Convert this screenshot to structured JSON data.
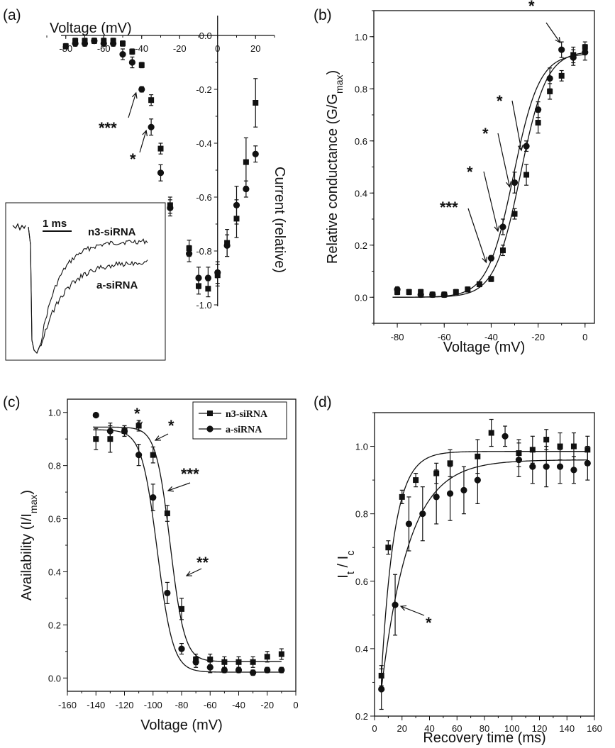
{
  "chart_data": [
    {
      "panel": "(a)",
      "type": "scatter",
      "xlabel": "Voltage (mV)",
      "ylabel": "Current (relative)",
      "xlim": [
        -90,
        30
      ],
      "ylim": [
        -1.0,
        0.1
      ],
      "xticks": [
        -80,
        -60,
        -40,
        -20,
        0,
        20
      ],
      "xtick_labels": [
        "-80",
        "-60",
        "-40",
        "-20",
        "0",
        "20"
      ],
      "yticks": [
        0.0,
        -0.2,
        -0.4,
        -0.6,
        -0.8,
        -1.0
      ],
      "ytick_labels": [
        "0.0",
        "-0.2",
        "-0.4",
        "-0.6",
        "-0.8",
        "-1.0"
      ],
      "series": [
        {
          "name": "n3-siRNA",
          "marker": "square",
          "points": [
            {
              "x": -80,
              "y": -0.04,
              "err": 0.01
            },
            {
              "x": -75,
              "y": -0.02,
              "err": 0.01
            },
            {
              "x": -70,
              "y": -0.02,
              "err": 0.01
            },
            {
              "x": -65,
              "y": -0.02,
              "err": 0.01
            },
            {
              "x": -60,
              "y": -0.02,
              "err": 0.01
            },
            {
              "x": -55,
              "y": -0.02,
              "err": 0.01
            },
            {
              "x": -50,
              "y": -0.03,
              "err": 0.01
            },
            {
              "x": -45,
              "y": -0.06,
              "err": 0.01
            },
            {
              "x": -40,
              "y": -0.11,
              "err": 0.01
            },
            {
              "x": -35,
              "y": -0.24,
              "err": 0.02
            },
            {
              "x": -30,
              "y": -0.42,
              "err": 0.02
            },
            {
              "x": -25,
              "y": -0.63,
              "err": 0.03
            },
            {
              "x": -15,
              "y": -0.79,
              "err": 0.03
            },
            {
              "x": -10,
              "y": -0.93,
              "err": 0.03
            },
            {
              "x": -5,
              "y": -0.94,
              "err": 0.03
            },
            {
              "x": 0,
              "y": -0.89,
              "err": 0.04
            },
            {
              "x": 5,
              "y": -0.77,
              "err": 0.05
            },
            {
              "x": 10,
              "y": -0.68,
              "err": 0.07
            },
            {
              "x": 15,
              "y": -0.47,
              "err": 0.09
            },
            {
              "x": 20,
              "y": -0.25,
              "err": 0.09
            }
          ]
        },
        {
          "name": "a-siRNA",
          "marker": "circle",
          "points": [
            {
              "x": -75,
              "y": -0.03,
              "err": 0.01
            },
            {
              "x": -70,
              "y": -0.03,
              "err": 0.01
            },
            {
              "x": -65,
              "y": -0.02,
              "err": 0.01
            },
            {
              "x": -60,
              "y": -0.03,
              "err": 0.01
            },
            {
              "x": -55,
              "y": -0.03,
              "err": 0.01
            },
            {
              "x": -50,
              "y": -0.07,
              "err": 0.02
            },
            {
              "x": -45,
              "y": -0.1,
              "err": 0.02
            },
            {
              "x": -40,
              "y": -0.2,
              "err": 0.01
            },
            {
              "x": -35,
              "y": -0.34,
              "err": 0.03
            },
            {
              "x": -30,
              "y": -0.51,
              "err": 0.03
            },
            {
              "x": -25,
              "y": -0.64,
              "err": 0.03
            },
            {
              "x": -15,
              "y": -0.81,
              "err": 0.03
            },
            {
              "x": -10,
              "y": -0.9,
              "err": 0.04
            },
            {
              "x": -5,
              "y": -0.9,
              "err": 0.04
            },
            {
              "x": 0,
              "y": -0.88,
              "err": 0.04
            },
            {
              "x": 5,
              "y": -0.78,
              "err": 0.04
            },
            {
              "x": 10,
              "y": -0.63,
              "err": 0.07
            },
            {
              "x": 15,
              "y": -0.57,
              "err": 0.03
            },
            {
              "x": 20,
              "y": -0.44,
              "err": 0.03
            }
          ]
        }
      ],
      "annotations": [
        {
          "text": "***",
          "at_x": -40,
          "at_y": -0.2
        },
        {
          "text": "*",
          "at_x": -35,
          "at_y": -0.34
        }
      ],
      "inset": {
        "scale_label": "1 ms",
        "labels": [
          "n3-siRNA",
          "a-siRNA"
        ]
      }
    },
    {
      "panel": "(b)",
      "type": "scatter",
      "xlabel": "Voltage (mV)",
      "ylabel_main": "Relative conductance (G/G",
      "ylabel_sub": "max",
      "ylabel_end": ")",
      "xlim": [
        -90,
        4
      ],
      "ylim": [
        -0.1,
        1.1
      ],
      "xticks": [
        -80,
        -60,
        -40,
        -20,
        0
      ],
      "xtick_labels": [
        "-80",
        "-60",
        "-40",
        "-20",
        "0"
      ],
      "yticks": [
        0.0,
        0.2,
        0.4,
        0.6,
        0.8,
        1.0
      ],
      "ytick_labels": [
        "0.0",
        "0.2",
        "0.4",
        "0.6",
        "0.8",
        "1.0"
      ],
      "fits": [
        {
          "series": "n3-siRNA",
          "model": "boltzmann",
          "v_half": -27.5,
          "k": 5.5,
          "gmax": 0.945
        },
        {
          "series": "a-siRNA",
          "model": "boltzmann",
          "v_half": -30.5,
          "k": 5.5,
          "gmax": 0.935
        }
      ],
      "series": [
        {
          "name": "n3-siRNA",
          "marker": "square",
          "points": [
            {
              "x": -80,
              "y": 0.02,
              "err": 0.01
            },
            {
              "x": -75,
              "y": 0.02,
              "err": 0.01
            },
            {
              "x": -70,
              "y": 0.02,
              "err": 0.01
            },
            {
              "x": -65,
              "y": 0.01,
              "err": 0.01
            },
            {
              "x": -60,
              "y": 0.01,
              "err": 0.01
            },
            {
              "x": -55,
              "y": 0.02,
              "err": 0.01
            },
            {
              "x": -50,
              "y": 0.03,
              "err": 0.01
            },
            {
              "x": -45,
              "y": 0.05,
              "err": 0.01
            },
            {
              "x": -40,
              "y": 0.07,
              "err": 0.01
            },
            {
              "x": -35,
              "y": 0.18,
              "err": 0.02
            },
            {
              "x": -30,
              "y": 0.32,
              "err": 0.02
            },
            {
              "x": -25,
              "y": 0.47,
              "err": 0.04
            },
            {
              "x": -20,
              "y": 0.67,
              "err": 0.04
            },
            {
              "x": -15,
              "y": 0.79,
              "err": 0.03
            },
            {
              "x": -10,
              "y": 0.85,
              "err": 0.02
            },
            {
              "x": -5,
              "y": 0.93,
              "err": 0.03
            },
            {
              "x": 0,
              "y": 0.96,
              "err": 0.02
            }
          ]
        },
        {
          "name": "a-siRNA",
          "marker": "circle",
          "points": [
            {
              "x": -80,
              "y": 0.03,
              "err": 0.01
            },
            {
              "x": -70,
              "y": 0.01,
              "err": 0.01
            },
            {
              "x": -65,
              "y": 0.01,
              "err": 0.01
            },
            {
              "x": -60,
              "y": 0.01,
              "err": 0.01
            },
            {
              "x": -40,
              "y": 0.15,
              "err": 0.01
            },
            {
              "x": -35,
              "y": 0.27,
              "err": 0.03
            },
            {
              "x": -30,
              "y": 0.44,
              "err": 0.04
            },
            {
              "x": -25,
              "y": 0.58,
              "err": 0.02
            },
            {
              "x": -20,
              "y": 0.72,
              "err": 0.03
            },
            {
              "x": -15,
              "y": 0.84,
              "err": 0.04
            },
            {
              "x": -10,
              "y": 0.95,
              "err": 0.03
            },
            {
              "x": -5,
              "y": 0.92,
              "err": 0.03
            },
            {
              "x": 0,
              "y": 0.94,
              "err": 0.03
            }
          ]
        }
      ],
      "annotations": [
        {
          "text": "***",
          "at_x": -40,
          "at_y": 0.15
        },
        {
          "text": "*",
          "at_x": -35,
          "at_y": 0.27
        },
        {
          "text": "*",
          "at_x": -30,
          "at_y": 0.44
        },
        {
          "text": "*",
          "at_x": -25,
          "at_y": 0.58
        },
        {
          "text": "*",
          "at_x": -10,
          "at_y": 0.95
        }
      ]
    },
    {
      "panel": "(c)",
      "type": "scatter",
      "xlabel": "Voltage (mV)",
      "ylabel_main": "Availability (I/I",
      "ylabel_sub": "max",
      "ylabel_end": ")",
      "xlim": [
        -160,
        0
      ],
      "ylim": [
        -0.05,
        1.05
      ],
      "xticks": [
        -160,
        -140,
        -120,
        -100,
        -80,
        -60,
        -40,
        -20,
        0
      ],
      "xtick_labels": [
        "-160",
        "-140",
        "-120",
        "-100",
        "-80",
        "-60",
        "-40",
        "-20",
        "0"
      ],
      "yticks": [
        0.0,
        0.2,
        0.4,
        0.6,
        0.8,
        1.0
      ],
      "ytick_labels": [
        "0.0",
        "0.2",
        "0.4",
        "0.6",
        "0.8",
        "1.0"
      ],
      "legend": {
        "position": "top-right",
        "entries": [
          "n3-siRNA",
          "a-siRNA"
        ]
      },
      "fits": [
        {
          "series": "n3-siRNA",
          "model": "boltzmann_decay",
          "v_half": -88,
          "k": 5.0,
          "top": 0.945,
          "bottom": 0.062
        },
        {
          "series": "a-siRNA",
          "model": "boltzmann_decay",
          "v_half": -97,
          "k": 5.5,
          "top": 0.935,
          "bottom": 0.022
        }
      ],
      "series": [
        {
          "name": "n3-siRNA",
          "marker": "square",
          "points": [
            {
              "x": -140,
              "y": 0.9,
              "err": 0.04
            },
            {
              "x": -130,
              "y": 0.9,
              "err": 0.05
            },
            {
              "x": -120,
              "y": 0.93,
              "err": 0.02
            },
            {
              "x": -110,
              "y": 0.95,
              "err": 0.02
            },
            {
              "x": -100,
              "y": 0.84,
              "err": 0.03
            },
            {
              "x": -90,
              "y": 0.62,
              "err": 0.03
            },
            {
              "x": -80,
              "y": 0.26,
              "err": 0.04
            },
            {
              "x": -70,
              "y": 0.07,
              "err": 0.02
            },
            {
              "x": -60,
              "y": 0.07,
              "err": 0.02
            },
            {
              "x": -50,
              "y": 0.06,
              "err": 0.02
            },
            {
              "x": -40,
              "y": 0.06,
              "err": 0.02
            },
            {
              "x": -30,
              "y": 0.06,
              "err": 0.02
            },
            {
              "x": -20,
              "y": 0.08,
              "err": 0.02
            },
            {
              "x": -10,
              "y": 0.09,
              "err": 0.02
            }
          ]
        },
        {
          "name": "a-siRNA",
          "marker": "circle",
          "points": [
            {
              "x": -140,
              "y": 0.99,
              "err": 0.0
            },
            {
              "x": -130,
              "y": 0.93,
              "err": 0.03
            },
            {
              "x": -120,
              "y": 0.93,
              "err": 0.02
            },
            {
              "x": -110,
              "y": 0.84,
              "err": 0.04
            },
            {
              "x": -100,
              "y": 0.68,
              "err": 0.05
            },
            {
              "x": -90,
              "y": 0.32,
              "err": 0.04
            },
            {
              "x": -80,
              "y": 0.11,
              "err": 0.02
            },
            {
              "x": -70,
              "y": 0.06,
              "err": 0.02
            },
            {
              "x": -60,
              "y": 0.04,
              "err": 0.02
            },
            {
              "x": -50,
              "y": 0.03,
              "err": 0.01
            },
            {
              "x": -40,
              "y": 0.03,
              "err": 0.01
            },
            {
              "x": -30,
              "y": 0.02,
              "err": 0.01
            },
            {
              "x": -20,
              "y": 0.03,
              "err": 0.01
            },
            {
              "x": -10,
              "y": 0.03,
              "err": 0.01
            }
          ]
        }
      ],
      "annotations": [
        {
          "text": "*",
          "at_x": -110,
          "at_y": 0.95
        },
        {
          "text": "*",
          "at_x": -100,
          "at_y": 0.84
        },
        {
          "text": "***",
          "at_x": -90,
          "at_y": 0.62
        },
        {
          "text": "**",
          "at_x": -80,
          "at_y": 0.26
        }
      ]
    },
    {
      "panel": "(d)",
      "type": "scatter",
      "xlabel": "Recovery time (ms)",
      "ylabel_main": "I",
      "ylabel_sub1": "t",
      "ylabel_mid": " / I",
      "ylabel_sub2": "c",
      "xlim": [
        0,
        160
      ],
      "ylim": [
        0.2,
        1.1
      ],
      "xticks": [
        0,
        20,
        40,
        60,
        80,
        100,
        120,
        140,
        160
      ],
      "xtick_labels": [
        "0",
        "20",
        "40",
        "60",
        "80",
        "100",
        "120",
        "140",
        "160"
      ],
      "yticks": [
        0.2,
        0.4,
        0.6,
        0.8,
        1.0
      ],
      "ytick_labels": [
        "0.2",
        "0.4",
        "0.6",
        "0.8",
        "1.0"
      ],
      "fits": [
        {
          "series": "n3-siRNA",
          "model": "exp_recovery",
          "y0": 0.32,
          "plateau": 0.985,
          "tau": 9.5
        },
        {
          "series": "a-siRNA",
          "model": "exp_recovery",
          "y0": 0.28,
          "plateau": 0.96,
          "tau": 20
        }
      ],
      "series": [
        {
          "name": "n3-siRNA",
          "marker": "square",
          "points": [
            {
              "x": 5,
              "y": 0.32,
              "err": 0.03
            },
            {
              "x": 10,
              "y": 0.7,
              "err": 0.02
            },
            {
              "x": 20,
              "y": 0.85,
              "err": 0.02
            },
            {
              "x": 30,
              "y": 0.9,
              "err": 0.02
            },
            {
              "x": 45,
              "y": 0.92,
              "err": 0.03
            },
            {
              "x": 55,
              "y": 0.95,
              "err": 0.04
            },
            {
              "x": 75,
              "y": 0.97,
              "err": 0.05
            },
            {
              "x": 85,
              "y": 1.04,
              "err": 0.04
            },
            {
              "x": 105,
              "y": 0.98,
              "err": 0.04
            },
            {
              "x": 115,
              "y": 0.99,
              "err": 0.04
            },
            {
              "x": 125,
              "y": 1.02,
              "err": 0.03
            },
            {
              "x": 135,
              "y": 1.0,
              "err": 0.04
            },
            {
              "x": 145,
              "y": 1.0,
              "err": 0.04
            },
            {
              "x": 155,
              "y": 0.99,
              "err": 0.04
            }
          ]
        },
        {
          "name": "a-siRNA",
          "marker": "circle",
          "points": [
            {
              "x": 5,
              "y": 0.28,
              "err": 0.06
            },
            {
              "x": 15,
              "y": 0.53,
              "err": 0.09
            },
            {
              "x": 25,
              "y": 0.77,
              "err": 0.08
            },
            {
              "x": 35,
              "y": 0.8,
              "err": 0.08
            },
            {
              "x": 45,
              "y": 0.85,
              "err": 0.08
            },
            {
              "x": 55,
              "y": 0.86,
              "err": 0.08
            },
            {
              "x": 65,
              "y": 0.87,
              "err": 0.07
            },
            {
              "x": 75,
              "y": 0.9,
              "err": 0.07
            },
            {
              "x": 95,
              "y": 1.03,
              "err": 0.03
            },
            {
              "x": 105,
              "y": 0.96,
              "err": 0.05
            },
            {
              "x": 115,
              "y": 0.94,
              "err": 0.05
            },
            {
              "x": 125,
              "y": 0.94,
              "err": 0.06
            },
            {
              "x": 135,
              "y": 0.94,
              "err": 0.05
            },
            {
              "x": 145,
              "y": 0.93,
              "err": 0.04
            },
            {
              "x": 155,
              "y": 0.95,
              "err": 0.05
            }
          ]
        }
      ],
      "annotations": [
        {
          "text": "*",
          "at_x": 15,
          "at_y": 0.53
        }
      ]
    }
  ]
}
